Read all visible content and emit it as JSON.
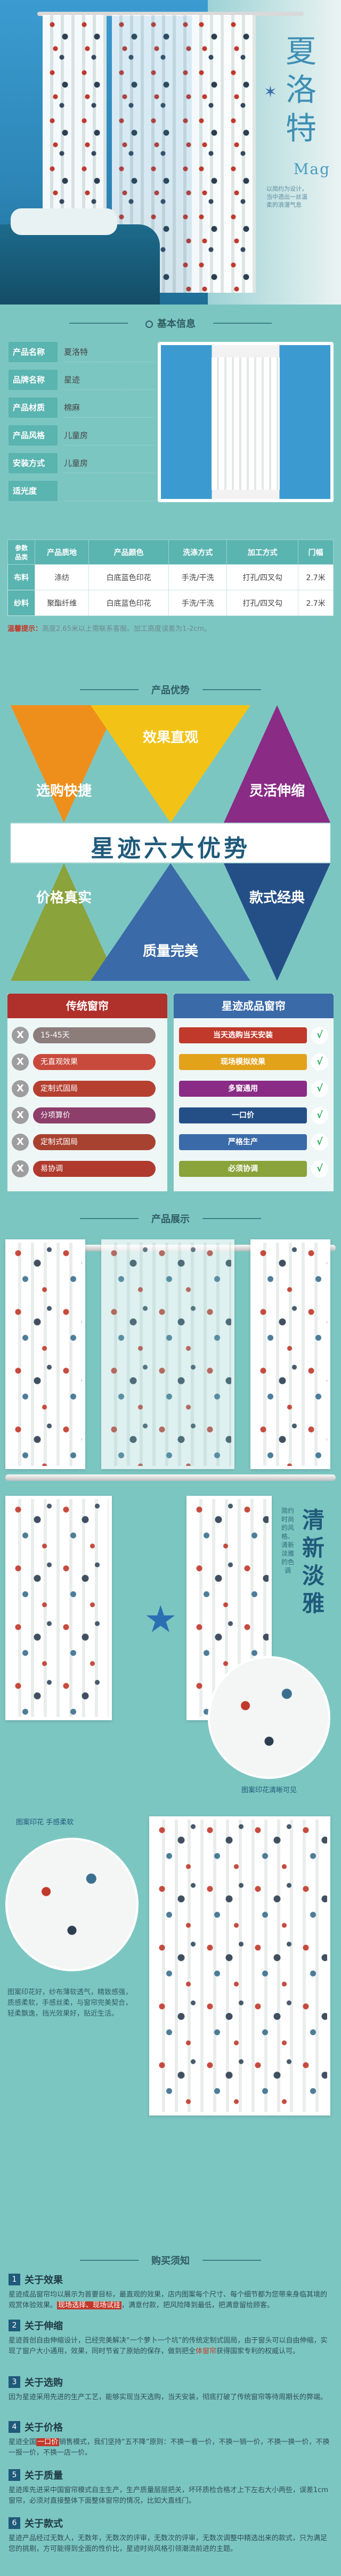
{
  "hero": {
    "title": "夏洛特",
    "subtitle": "Mag",
    "slogan": "以简约为设计，当中透出一丝温柔的浪漫气息"
  },
  "info": {
    "heading": "基本信息",
    "rows": [
      {
        "k": "产品名称",
        "v": "夏洛特"
      },
      {
        "k": "品牌名称",
        "v": "星迹"
      },
      {
        "k": "产品材质",
        "v": "棉麻"
      },
      {
        "k": "产品风格",
        "v": "儿童房"
      },
      {
        "k": "安装方式",
        "v": "儿童房"
      },
      {
        "k": "适光度",
        "v": ""
      }
    ],
    "table": {
      "headers": [
        "参数\n品类",
        "产品质地",
        "产品颜色",
        "洗涤方式",
        "加工方式",
        "门幅"
      ],
      "rows": [
        [
          "布料",
          "涤纺",
          "白底蓝色印花",
          "手洗/干洗",
          "打孔/四叉勾",
          "2.7米"
        ],
        [
          "纱料",
          "聚酯纤维",
          "白底蓝色印花",
          "手洗/干洗",
          "打孔/四叉勾",
          "2.7米"
        ]
      ]
    },
    "note": {
      "label": "温馨提示：",
      "text": "高度2.65米以上需联系客服。加工高度误差为1-2cm。"
    }
  },
  "adv": {
    "heading": "产品优势",
    "center": "星迹六大优势",
    "items": [
      "选购快捷",
      "效果直观",
      "灵活伸缩",
      "价格真实",
      "质量完美",
      "款式经典"
    ],
    "colors": {
      "orange": "#ef8f1b",
      "yellow": "#f2c316",
      "purple": "#8a2b86",
      "green": "#8aa33a",
      "blue": "#3a6aa8",
      "navy": "#244f86"
    }
  },
  "cmp": {
    "left_title": "传统窗帘",
    "right_title": "星迹成品窗帘",
    "left": [
      "15-45天",
      "无直观效果",
      "定制式固局",
      "分项算价",
      "定制式固局",
      "易协调"
    ],
    "right": [
      "当天选购当天安装",
      "现场模拟效果",
      "多窗通用",
      "一口价",
      "严格生产",
      "必须协调"
    ],
    "x": "X",
    "v": "√"
  },
  "disp": {
    "heading": "产品展示",
    "vertical": "清新淡雅",
    "vertical_sub": "简约时尚的风格、清新淡雅的色调",
    "cap1": "图案印花清晰可见",
    "cap2": "图案印花 手感柔软",
    "desc": "图案印花好，纱布薄软透气，精致感强，质感柔软，手感丝柔，与窗帘完美契合，轻柔飘逸，挡光效果好，贴近生活。"
  },
  "notes": {
    "heading": "购买须知",
    "items": [
      {
        "n": "1",
        "t": "关于效果",
        "p": "星迹成品窗帘均以展示为首要目标，最直观的效果，店内图案每个尺寸、每个细节都为您带来身临其境的观赏体验效果。",
        "hl": "现场选择、现场试挂",
        "p2": "，满意付款，把风险降到最低，把满意留给顾客。"
      },
      {
        "n": "2",
        "t": "关于伸缩",
        "p": "星迹首创自由伸缩设计，已经完美解决“一个萝卜一个坑”的传统定制式固局，由于窗头可以自由伸缩，实现了窗户大小通用，效果，同时节省了原始的保存，做到把全",
        "": "",
        "hl": "体窗帘",
        "p2": "获得国家专利的权威认可。"
      },
      {
        "n": "3",
        "t": "关于选购",
        "p": "因为星迹采用先进的生产工艺，能够实现当天选购，当天安装，彻底打破了传统窗帘等待周期长的弊端。",
        "hl": "当天选购，当天安装",
        "p2": "，彻底打破了传统窗帘的整个周期。"
      },
      {
        "n": "4",
        "t": "关于价格",
        "p": "星迹全国",
        "hl": "一口价",
        "p2": "销售模式，我们坚持“五不降”原则：不换一看一价，不换一销一价，不换一换一价，不换一报一价，不换一店一价。"
      },
      {
        "n": "5",
        "t": "关于质量",
        "p": "星迹库先进采中国窗帘模式自主生产，生产质量层层把关，坏环质检合格才上下左右大小两些，误差1cm窗帘，",
        "hl": "",
        "p2": "必须对直接整体下面整体窗帘的情况，比如大直线门。"
      },
      {
        "n": "6",
        "t": "关于款式",
        "p": "星迹产品经过无数人，无数年，无数次的评审，无数次的评审，无数次调整中精选出来的款式，只为满足您的挑剔，方可能得到全面的性价比，星迹时尚风格引领潮流前进的主题。",
        "hl": "",
        "p2": ""
      }
    ]
  }
}
